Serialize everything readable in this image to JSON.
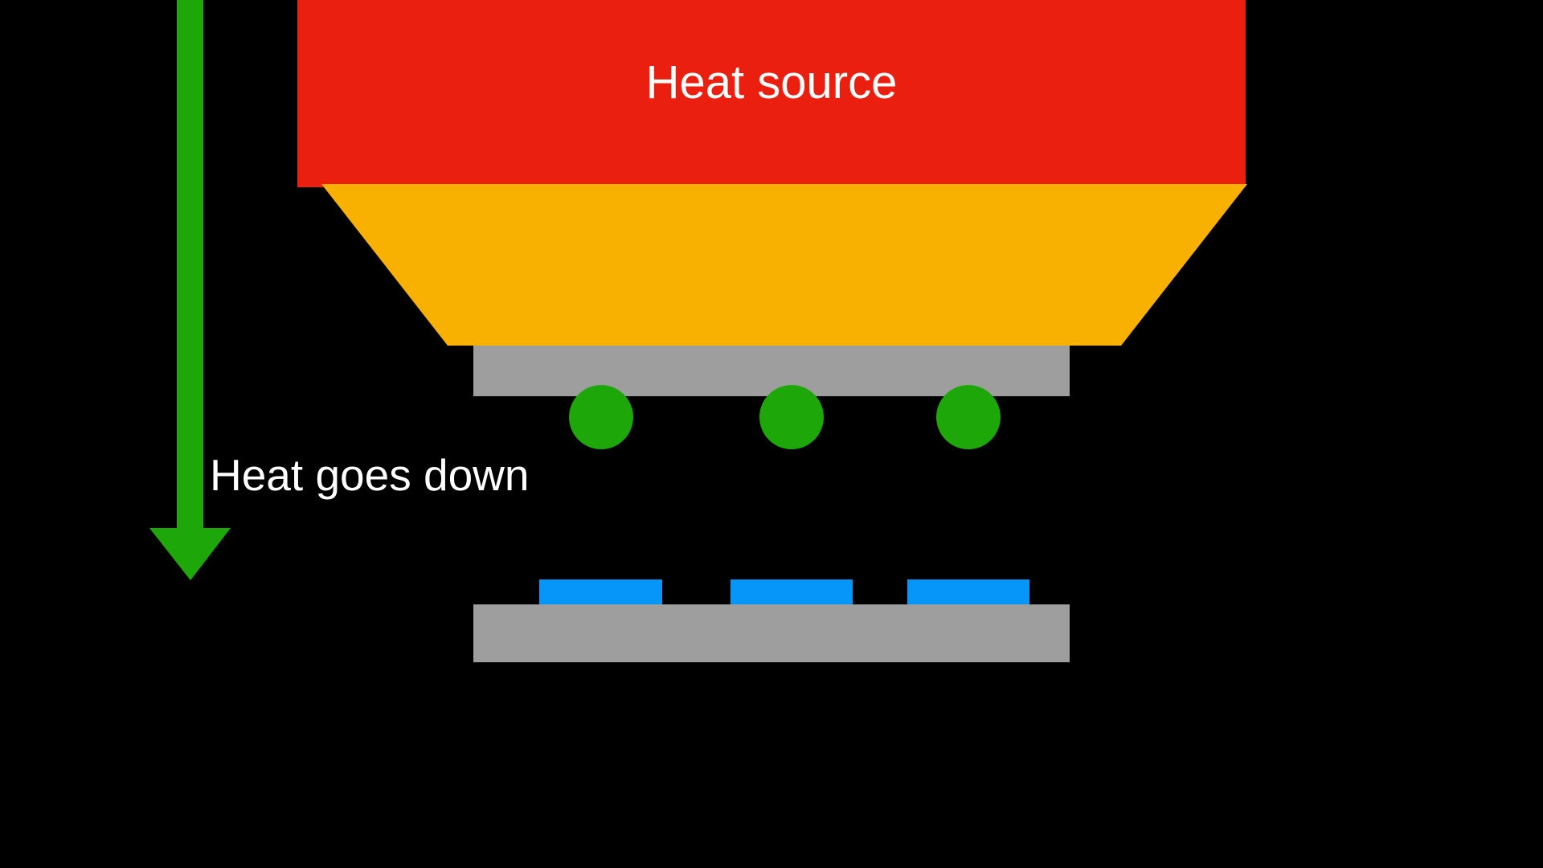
{
  "labels": {
    "heat_source": "Heat source",
    "heat_direction": "Heat goes down"
  },
  "colors": {
    "background": "#000000",
    "heat_source": "#EB1F0F",
    "heat_spreader": "#F8B100",
    "chip_substrate": "#9E9E9E",
    "solder_ball": "#1DA708",
    "pcb_board": "#9E9E9E",
    "pcb_pad": "#0696F9",
    "arrow": "#1DA708",
    "text": "#FFFFFF"
  }
}
